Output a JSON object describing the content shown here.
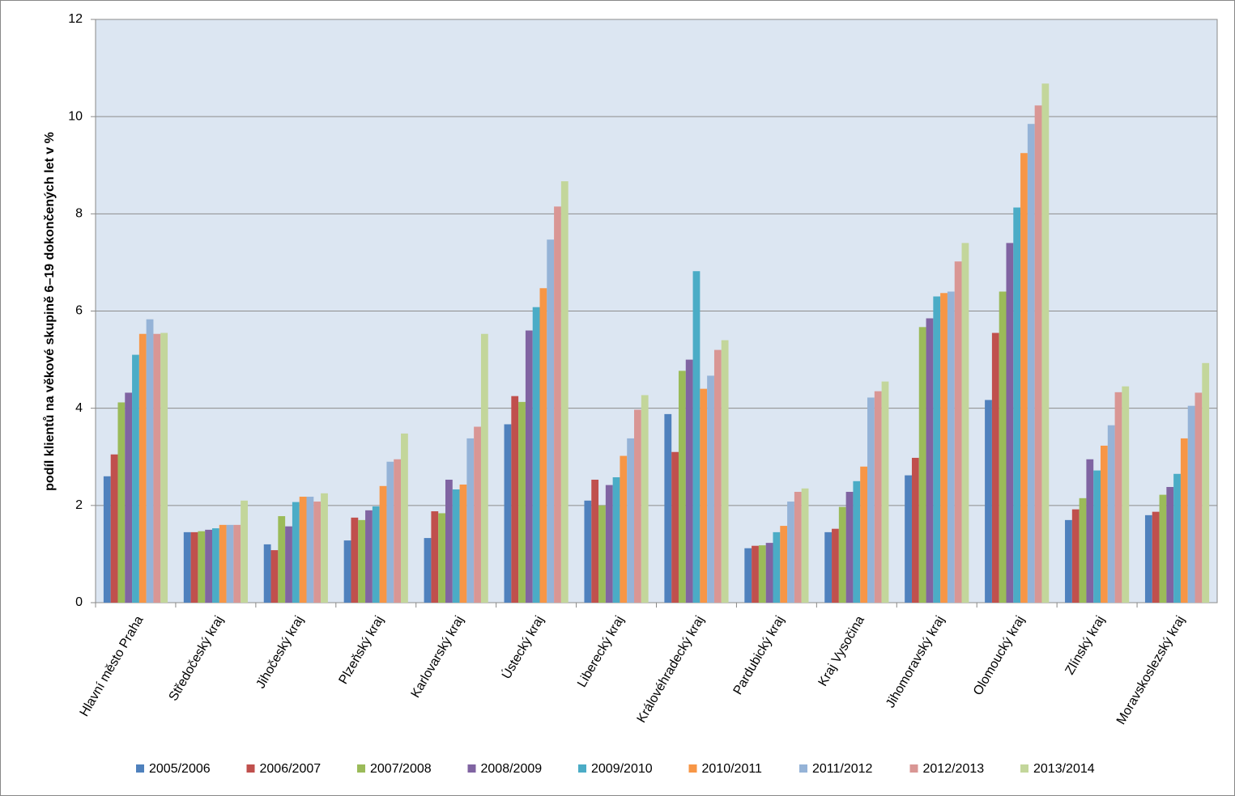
{
  "chart_data": {
    "type": "bar",
    "y_label": "podíl klientů na věkové skupině 6–19 dokončených let v %",
    "categories": [
      "Hlavní město Praha",
      "Středočeský kraj",
      "Jihočeský kraj",
      "Plzeňský kraj",
      "Karlovarský kraj",
      "Ústecký kraj",
      "Liberecký kraj",
      "Královéhradecký kraj",
      "Pardubický kraj",
      "Kraj Vysočina",
      "Jihomoravský kraj",
      "Olomoucký kraj",
      "Zlínský kraj",
      "Moravskoslezský kraj"
    ],
    "series": [
      {
        "name": "2005/2006",
        "color": "#4f81bd",
        "values": [
          2.6,
          1.45,
          1.2,
          1.28,
          1.33,
          3.67,
          2.1,
          3.88,
          1.12,
          1.45,
          2.62,
          4.17,
          1.7,
          1.8
        ]
      },
      {
        "name": "2006/2007",
        "color": "#c0504d",
        "values": [
          3.05,
          1.45,
          1.08,
          1.75,
          1.88,
          4.25,
          2.53,
          3.1,
          1.17,
          1.52,
          2.98,
          5.55,
          1.92,
          1.87
        ]
      },
      {
        "name": "2007/2008",
        "color": "#9bbb59",
        "values": [
          4.12,
          1.47,
          1.78,
          1.7,
          1.84,
          4.13,
          2.0,
          4.77,
          1.18,
          1.97,
          5.67,
          6.4,
          2.15,
          2.22
        ]
      },
      {
        "name": "2008/2009",
        "color": "#8064a2",
        "values": [
          4.32,
          1.5,
          1.57,
          1.9,
          2.53,
          5.6,
          2.42,
          5.0,
          1.23,
          2.28,
          5.85,
          7.4,
          2.95,
          2.38
        ]
      },
      {
        "name": "2009/2010",
        "color": "#4bacc6",
        "values": [
          5.1,
          1.53,
          2.07,
          1.98,
          2.33,
          6.08,
          2.58,
          6.82,
          1.45,
          2.5,
          6.3,
          8.13,
          2.72,
          2.65
        ]
      },
      {
        "name": "2010/2011",
        "color": "#f79646",
        "values": [
          5.53,
          1.6,
          2.18,
          2.4,
          2.43,
          6.47,
          3.02,
          4.4,
          1.58,
          2.8,
          6.37,
          9.25,
          3.23,
          3.38
        ]
      },
      {
        "name": "2011/2012",
        "color": "#95b3d7",
        "values": [
          5.83,
          1.6,
          2.18,
          2.9,
          3.38,
          7.47,
          3.38,
          4.67,
          2.08,
          4.22,
          6.4,
          9.85,
          3.65,
          4.05
        ]
      },
      {
        "name": "2012/2013",
        "color": "#d99694",
        "values": [
          5.53,
          1.6,
          2.08,
          2.95,
          3.62,
          8.15,
          3.97,
          5.2,
          2.28,
          4.35,
          7.02,
          10.23,
          4.33,
          4.32
        ]
      },
      {
        "name": "2013/2014",
        "color": "#c3d69b",
        "values": [
          5.55,
          2.1,
          2.25,
          3.48,
          5.53,
          8.67,
          4.27,
          5.4,
          2.35,
          4.55,
          7.4,
          10.68,
          4.45,
          4.93
        ]
      }
    ],
    "ylim": [
      0,
      12
    ],
    "yticks": [
      0,
      2,
      4,
      6,
      8,
      10,
      12
    ],
    "grid": true,
    "legend": "bottom"
  }
}
